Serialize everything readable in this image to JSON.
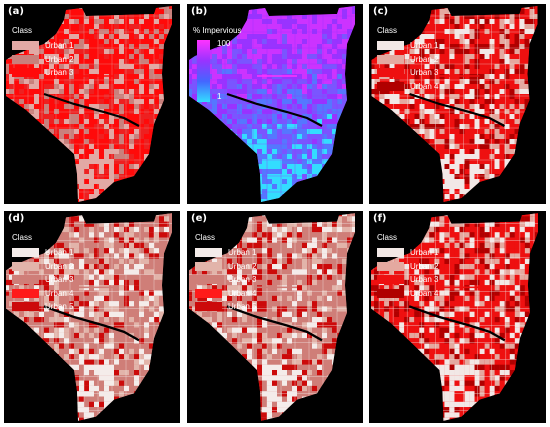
{
  "panels": [
    {
      "label": "(a)",
      "type": "class",
      "legend_title": "Class",
      "classes": [
        {
          "name": "Urban 1",
          "color": "#e2a9a5"
        },
        {
          "name": "Urban 2",
          "color": "#c9807c"
        },
        {
          "name": "Urban 3",
          "color": "#ff0a0a"
        }
      ],
      "map_colors": [
        "#e2a9a5",
        "#c9807c",
        "#ff0a0a",
        "#ff0a0a",
        "#ee2020"
      ]
    },
    {
      "label": "(b)",
      "type": "gradient",
      "legend_title": "% Impervious",
      "max_label": "100",
      "min_label": "1",
      "map_colors": [
        "#9933ff",
        "#7a55ff",
        "#cc33ff",
        "#5577ff",
        "#33ddff"
      ]
    },
    {
      "label": "(c)",
      "type": "class",
      "legend_title": "Class",
      "classes": [
        {
          "name": "Urban 1",
          "color": "#f2e8e6"
        },
        {
          "name": "Urban 2",
          "color": "#e4a9a0"
        },
        {
          "name": "Urban 3",
          "color": "#ee1010"
        },
        {
          "name": "Urban 4",
          "color": "#b00000"
        }
      ],
      "map_colors": [
        "#f2e8e6",
        "#e4a9a0",
        "#ee1010",
        "#ee1010",
        "#b00000"
      ]
    },
    {
      "label": "(d)",
      "type": "class",
      "legend_title": "Class",
      "classes": [
        {
          "name": "Urban 1",
          "color": "#f4ecea"
        },
        {
          "name": "Urban 2",
          "color": "#e2b4aa"
        },
        {
          "name": "Urban 3",
          "color": "#cf7e78"
        },
        {
          "name": "Urban 4",
          "color": "#ff1a1a"
        },
        {
          "name": "Urban 5",
          "color": "#cc0a0a"
        }
      ],
      "map_colors": [
        "#f4ecea",
        "#e2b4aa",
        "#cf7e78",
        "#ff1a1a",
        "#cc0a0a"
      ]
    },
    {
      "label": "(e)",
      "type": "class",
      "legend_title": "Class",
      "classes": [
        {
          "name": "Urban 1",
          "color": "#f4ecea"
        },
        {
          "name": "Urban 2",
          "color": "#e2b4aa"
        },
        {
          "name": "Urban 3",
          "color": "#cf7e78"
        },
        {
          "name": "Urban 4",
          "color": "#ff1a1a"
        },
        {
          "name": "Urban 5",
          "color": "#cc0a0a"
        }
      ],
      "map_colors": [
        "#f4ecea",
        "#e2b4aa",
        "#cf7e78",
        "#ff1a1a",
        "#cc0a0a"
      ]
    },
    {
      "label": "(f)",
      "type": "class",
      "legend_title": "Class",
      "classes": [
        {
          "name": "Urban 1",
          "color": "#f2e8e6"
        },
        {
          "name": "Urban 2",
          "color": "#e4a9a0"
        },
        {
          "name": "Urban 3",
          "color": "#ee1010"
        },
        {
          "name": "Urban 4",
          "color": "#b00000"
        }
      ],
      "map_colors": [
        "#f2e8e6",
        "#e4a9a0",
        "#ee1010",
        "#ee1010",
        "#b00000"
      ]
    }
  ]
}
